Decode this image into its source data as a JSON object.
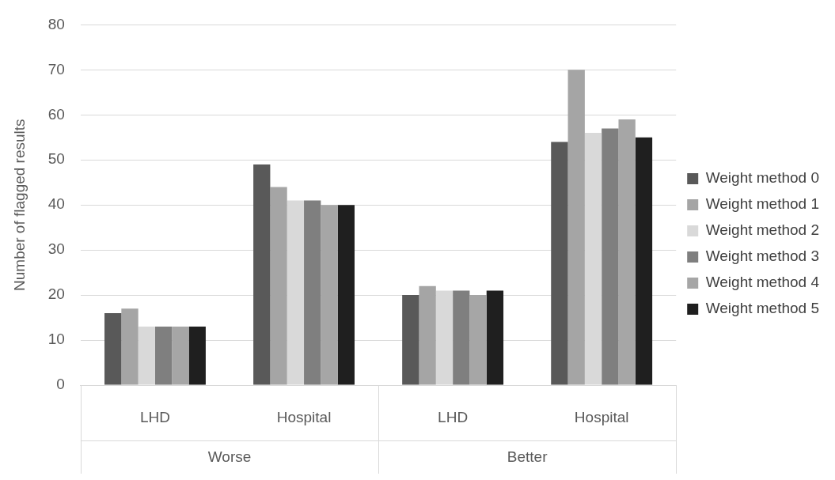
{
  "chart_data": {
    "type": "bar",
    "ylabel": "Number of flagged results",
    "categories": [
      "LHD",
      "Hospital",
      "LHD",
      "Hospital"
    ],
    "series": [
      {
        "name": "Weight method 0",
        "color": "#595959",
        "values": [
          16,
          49,
          20,
          54
        ]
      },
      {
        "name": "Weight method 1",
        "color": "#a5a5a5",
        "values": [
          17,
          44,
          22,
          70
        ]
      },
      {
        "name": "Weight method 2",
        "color": "#d9d9d9",
        "values": [
          13,
          41,
          21,
          56
        ]
      },
      {
        "name": "Weight method 3",
        "color": "#7f7f7f",
        "values": [
          13,
          41,
          21,
          57
        ]
      },
      {
        "name": "Weight method 4",
        "color": "#a6a6a6",
        "values": [
          13,
          40,
          20,
          59
        ]
      },
      {
        "name": "Weight method 5",
        "color": "#1f1f1f",
        "values": [
          13,
          40,
          21,
          55
        ]
      }
    ],
    "annotations": [
      "Worse",
      "Better"
    ],
    "ylim": [
      0,
      80
    ],
    "yticks": [
      0,
      10,
      20,
      30,
      40,
      50,
      60,
      70,
      80
    ],
    "grid": "y",
    "legend": "right"
  }
}
